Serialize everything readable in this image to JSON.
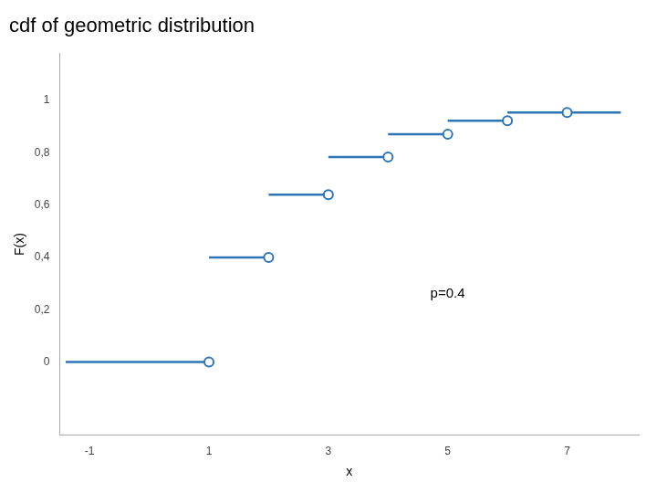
{
  "chart_data": {
    "type": "step",
    "title": "cdf of geometric distribution",
    "xlabel": "x",
    "ylabel": "F(x)",
    "annotation": "p=0.4",
    "segment_starts": [
      -1.4,
      1,
      2,
      3,
      4,
      5,
      6
    ],
    "segment_ends": [
      1,
      2,
      3,
      4,
      5,
      6,
      7.9
    ],
    "values": [
      0,
      0.4,
      0.64,
      0.784,
      0.8704,
      0.92224,
      0.95334
    ],
    "open_circles": {
      "x": [
        1,
        2,
        3,
        4,
        5,
        6,
        7
      ],
      "values": [
        0,
        0.4,
        0.64,
        0.784,
        0.8704,
        0.92224,
        0.95334
      ]
    },
    "color": "#2E75B6",
    "marker": "open_circle",
    "grid": false,
    "xlim": [
      -1.5,
      8.2
    ],
    "ylim": [
      -0.28,
      1.18
    ],
    "xticks": [
      -1,
      1,
      3,
      5,
      7
    ],
    "yticks": [
      0,
      {
        "value": 0.2,
        "label": "0,2"
      },
      {
        "value": 0.4,
        "label": "0,4"
      },
      {
        "value": 0.6,
        "label": "0,6"
      },
      {
        "value": 0.8,
        "label": "0,8"
      },
      1
    ]
  }
}
